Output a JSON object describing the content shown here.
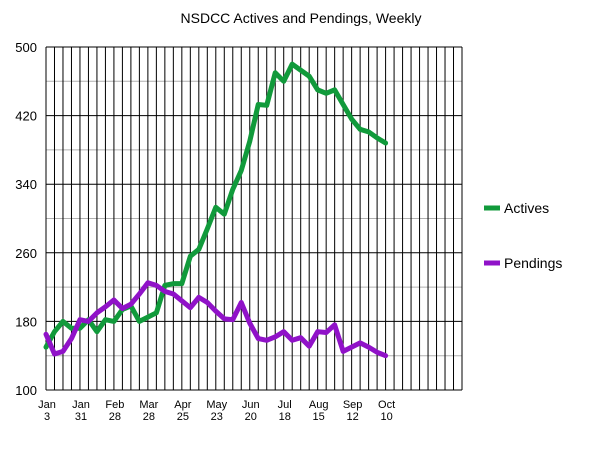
{
  "chart_data": {
    "type": "line",
    "title": "NSDCC Actives and Pendings, Weekly",
    "xlabel": "",
    "ylabel": "",
    "ylim": [
      100,
      500
    ],
    "yticks": [
      100,
      180,
      260,
      340,
      420,
      500
    ],
    "grid": true,
    "legend": "right",
    "x_tick_labels": [
      [
        "Jan",
        "3"
      ],
      [
        "Jan",
        "31"
      ],
      [
        "Feb",
        "28"
      ],
      [
        "Mar",
        "28"
      ],
      [
        "Apr",
        "25"
      ],
      [
        "May",
        "23"
      ],
      [
        "Jun",
        "20"
      ],
      [
        "Jul",
        "18"
      ],
      [
        "Aug",
        "15"
      ],
      [
        "Sep",
        "12"
      ],
      [
        "Oct",
        "10"
      ]
    ],
    "x_slots": 49,
    "series": [
      {
        "name": "Actives",
        "color": "#119a3b",
        "values": [
          150,
          168,
          180,
          172,
          172,
          182,
          168,
          182,
          180,
          194,
          198,
          180,
          185,
          190,
          222,
          224,
          224,
          256,
          264,
          288,
          313,
          305,
          334,
          356,
          390,
          433,
          432,
          470,
          460,
          480,
          473,
          466,
          450,
          446,
          450,
          433,
          416,
          404,
          401,
          394,
          388
        ]
      },
      {
        "name": "Pendings",
        "color": "#9012c8",
        "values": [
          165,
          142,
          145,
          160,
          182,
          180,
          190,
          197,
          205,
          195,
          200,
          212,
          225,
          222,
          215,
          212,
          204,
          196,
          208,
          202,
          192,
          183,
          182,
          202,
          178,
          160,
          158,
          162,
          168,
          158,
          161,
          151,
          168,
          167,
          176,
          145,
          150,
          155,
          150,
          144,
          140
        ]
      }
    ]
  }
}
